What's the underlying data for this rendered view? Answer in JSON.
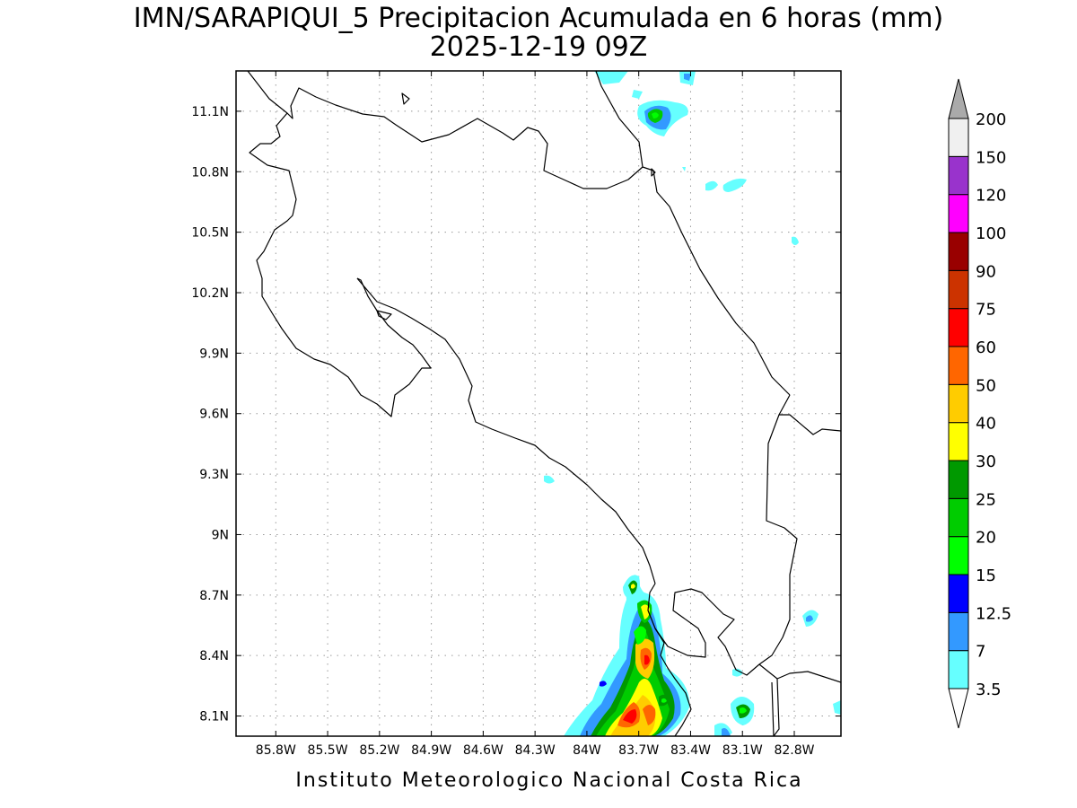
{
  "title": "IMN/SARAPIQUI_5 Precipitacion Acumulada en 6 horas (mm)",
  "subtitle": "2025-12-19 09Z",
  "credit": "Instituto Meteorologico Nacional Costa Rica",
  "map": {
    "lon_range": [
      -86.03,
      -82.53
    ],
    "lat_range": [
      8.0,
      11.3
    ],
    "x_ticks": [
      {
        "value": -85.8,
        "label": "85.8W"
      },
      {
        "value": -85.5,
        "label": "85.5W"
      },
      {
        "value": -85.2,
        "label": "85.2W"
      },
      {
        "value": -84.9,
        "label": "84.9W"
      },
      {
        "value": -84.6,
        "label": "84.6W"
      },
      {
        "value": -84.3,
        "label": "84.3W"
      },
      {
        "value": -84.0,
        "label": "84W"
      },
      {
        "value": -83.7,
        "label": "83.7W"
      },
      {
        "value": -83.4,
        "label": "83.4W"
      },
      {
        "value": -83.1,
        "label": "83.1W"
      },
      {
        "value": -82.8,
        "label": "82.8W"
      }
    ],
    "y_ticks": [
      {
        "value": 11.1,
        "label": "11.1N"
      },
      {
        "value": 10.8,
        "label": "10.8N"
      },
      {
        "value": 10.5,
        "label": "10.5N"
      },
      {
        "value": 10.2,
        "label": "10.2N"
      },
      {
        "value": 9.9,
        "label": "9.9N"
      },
      {
        "value": 9.6,
        "label": "9.6N"
      },
      {
        "value": 9.3,
        "label": "9.3N"
      },
      {
        "value": 9.0,
        "label": "9N"
      },
      {
        "value": 8.7,
        "label": "8.7N"
      },
      {
        "value": 8.4,
        "label": "8.4N"
      },
      {
        "value": 8.1,
        "label": "8.1N"
      }
    ],
    "grid": true
  },
  "colorbar": {
    "levels": [
      "3.5",
      "7",
      "12.5",
      "15",
      "20",
      "25",
      "30",
      "40",
      "50",
      "60",
      "75",
      "90",
      "100",
      "120",
      "150",
      "200"
    ],
    "colors": [
      "#66ffff",
      "#3399ff",
      "#0000ff",
      "#00ff00",
      "#00cc00",
      "#009900",
      "#ffff00",
      "#ffcc00",
      "#ff6600",
      "#ff0000",
      "#cc3300",
      "#990000",
      "#ff00ff",
      "#9933cc",
      "#f0f0f0"
    ],
    "below_color": "#ffffff",
    "above_color": "#aaaaaa"
  },
  "rain_areas": [
    {
      "lon": -83.6,
      "lat": 11.1,
      "rx": 0.1,
      "ry": 0.05,
      "level": 4
    },
    {
      "lon": -83.71,
      "lat": 8.24,
      "rx": 0.13,
      "ry": 0.18,
      "level": 7
    },
    {
      "lon": -83.63,
      "lat": 8.4,
      "rx": 0.07,
      "ry": 0.12,
      "level": 5
    },
    {
      "lon": -83.11,
      "lat": 8.12,
      "rx": 0.05,
      "ry": 0.05,
      "level": 4
    },
    {
      "lon": -83.7,
      "lat": 8.74,
      "rx": 0.03,
      "ry": 0.05,
      "level": 4
    },
    {
      "lon": -83.63,
      "lat": 8.61,
      "rx": 0.04,
      "ry": 0.08,
      "level": 6
    }
  ]
}
